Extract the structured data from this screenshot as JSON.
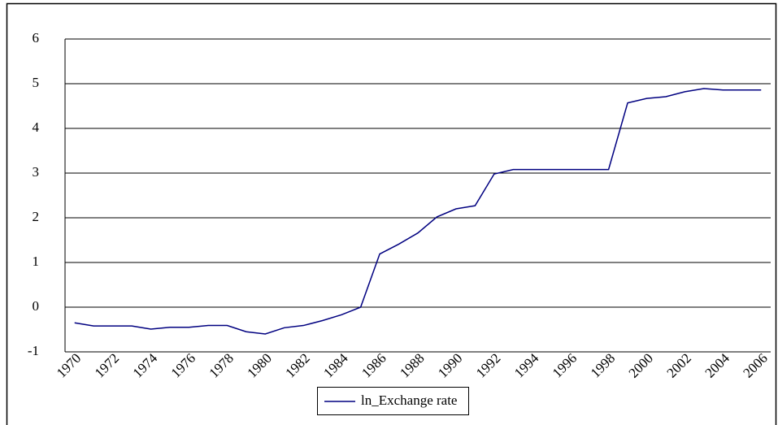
{
  "chart_data": {
    "type": "line",
    "categories": [
      "1970",
      null,
      "1972",
      null,
      "1974",
      null,
      "1976",
      null,
      "1978",
      null,
      "1980",
      null,
      "1982",
      null,
      "1984",
      null,
      "1986",
      null,
      "1988",
      null,
      "1990",
      null,
      "1992",
      null,
      "1994",
      null,
      "1996",
      null,
      "1998",
      null,
      "2000",
      null,
      "2002",
      null,
      "2004",
      null,
      "2006"
    ],
    "series": [
      {
        "name": "ln_Exchange rate",
        "color": "#000080",
        "values": [
          -0.35,
          -0.42,
          -0.42,
          -0.42,
          -0.49,
          -0.45,
          -0.45,
          -0.41,
          -0.41,
          -0.55,
          -0.6,
          -0.46,
          -0.41,
          -0.3,
          -0.17,
          0,
          1.19,
          1.41,
          1.66,
          2.02,
          2.2,
          2.27,
          2.98,
          3.08,
          3.08,
          3.08,
          3.08,
          3.08,
          3.08,
          4.57,
          4.67,
          4.71,
          4.82,
          4.89,
          4.86,
          4.86,
          4.86
        ]
      }
    ],
    "ylim": [
      -1,
      6
    ],
    "yticks": [
      -1,
      0,
      1,
      2,
      3,
      4,
      5,
      6
    ],
    "grid": true,
    "legend": "bottom"
  }
}
